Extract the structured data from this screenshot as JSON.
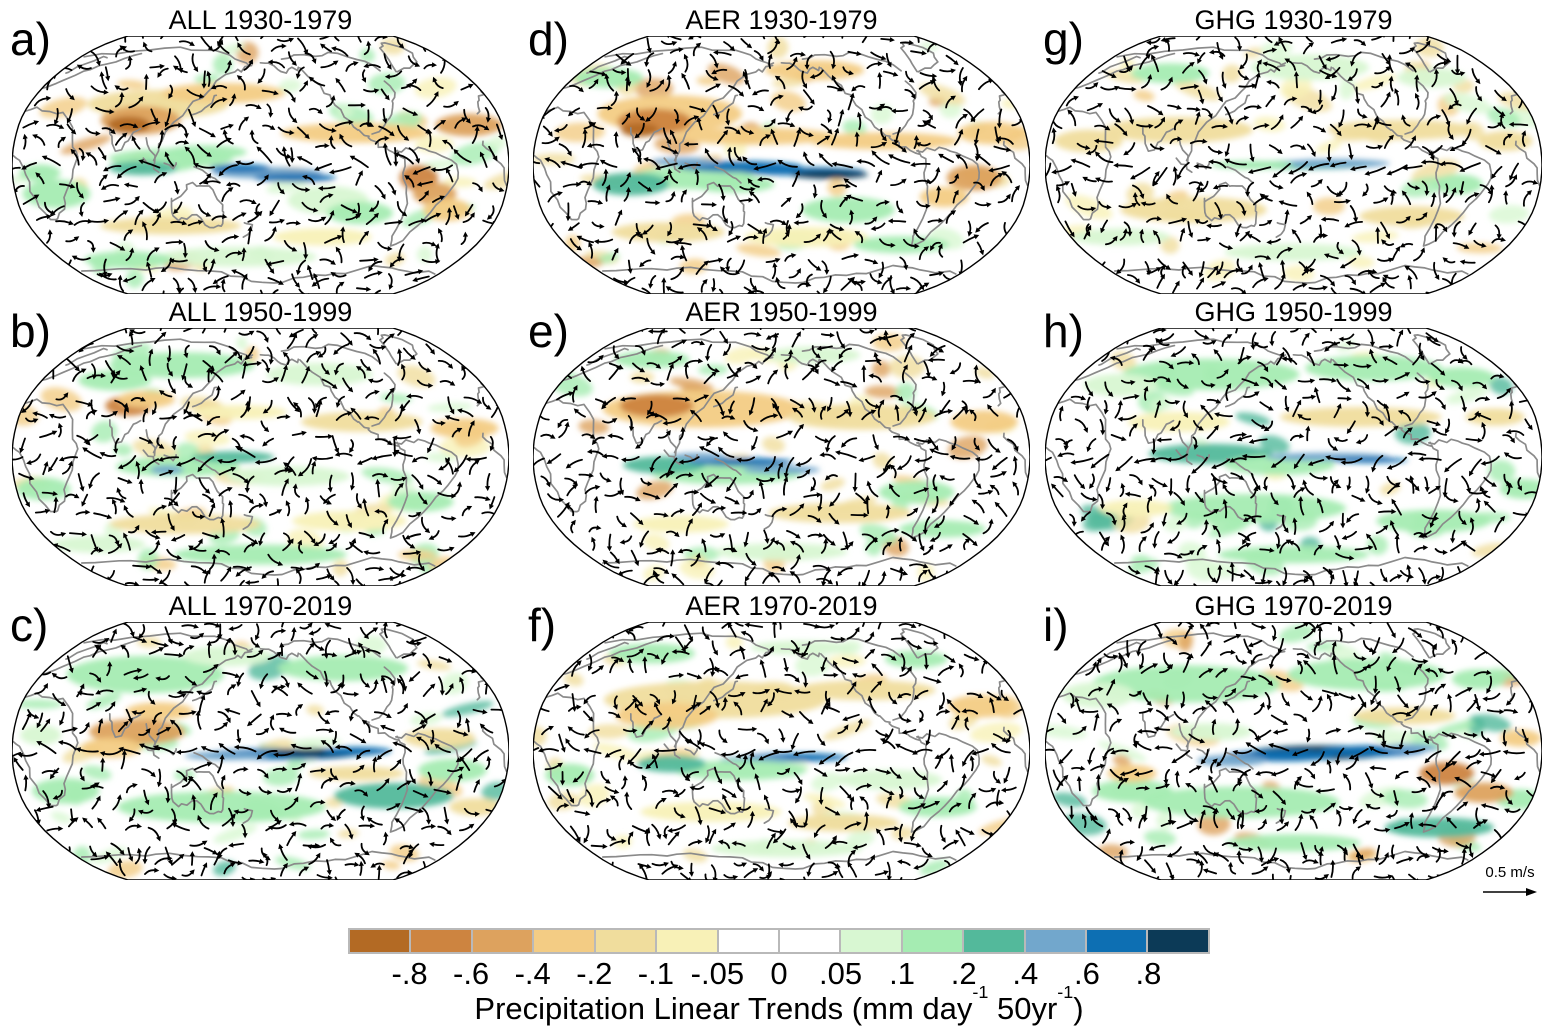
{
  "figure": {
    "background": "#ffffff"
  },
  "chart_data": {
    "type": "map-grid",
    "projection": "robinson",
    "description": "3x3 grid of global maps of precipitation linear trends (shading) with wind trend vectors (arrows) for three forcings (ALL, AER, GHG) across three 50-year periods",
    "rows": 3,
    "cols": 3,
    "panels": [
      {
        "id": "a",
        "label": "a)",
        "title": "ALL 1930-1979",
        "forcing": "ALL",
        "period": "1930-1979",
        "row": 1,
        "col": 1
      },
      {
        "id": "d",
        "label": "d)",
        "title": "AER 1930-1979",
        "forcing": "AER",
        "period": "1930-1979",
        "row": 1,
        "col": 2
      },
      {
        "id": "g",
        "label": "g)",
        "title": "GHG 1930-1979",
        "forcing": "GHG",
        "period": "1930-1979",
        "row": 1,
        "col": 3
      },
      {
        "id": "b",
        "label": "b)",
        "title": "ALL 1950-1999",
        "forcing": "ALL",
        "period": "1950-1999",
        "row": 2,
        "col": 1
      },
      {
        "id": "e",
        "label": "e)",
        "title": "AER 1950-1999",
        "forcing": "AER",
        "period": "1950-1999",
        "row": 2,
        "col": 2
      },
      {
        "id": "h",
        "label": "h)",
        "title": "GHG 1950-1999",
        "forcing": "GHG",
        "period": "1950-1999",
        "row": 2,
        "col": 3
      },
      {
        "id": "c",
        "label": "c)",
        "title": "ALL 1970-2019",
        "forcing": "ALL",
        "period": "1970-2019",
        "row": 3,
        "col": 1
      },
      {
        "id": "f",
        "label": "f)",
        "title": "AER 1970-2019",
        "forcing": "AER",
        "period": "1970-2019",
        "row": 3,
        "col": 2
      },
      {
        "id": "i",
        "label": "i)",
        "title": "GHG 1970-2019",
        "forcing": "GHG",
        "period": "1970-2019",
        "row": 3,
        "col": 3
      }
    ],
    "colorbar": {
      "orientation": "horizontal",
      "label_plain": "Precipitation Linear Trends (mm day-1 50yr-1)",
      "label_parts": {
        "p1": "Precipitation Linear Trends (mm day",
        "sup1": "-1",
        "p2": " 50yr",
        "sup2": "-1",
        "p3": ")"
      },
      "ticks": [
        "-.8",
        "-.6",
        "-.4",
        "-.2",
        "-.1",
        "-.05",
        "0",
        ".05",
        ".1",
        ".2",
        ".4",
        ".6",
        ".8"
      ],
      "colors": [
        "#b36a24",
        "#cd8440",
        "#dda25e",
        "#f3cc84",
        "#f0dd9d",
        "#f8f1b7",
        "#ffffff",
        "#ffffff",
        "#d8f7d2",
        "#a5ecb2",
        "#53b99b",
        "#72a7cc",
        "#0d6fb3",
        "#0c3a57"
      ]
    },
    "vector_scale": {
      "label": "0.5 m/s"
    },
    "map_style": {
      "coastline_color": "#8a8a8a",
      "arrow_color": "#000000",
      "outline_color": "#000000",
      "ocean_fill": "#ffffff"
    }
  }
}
